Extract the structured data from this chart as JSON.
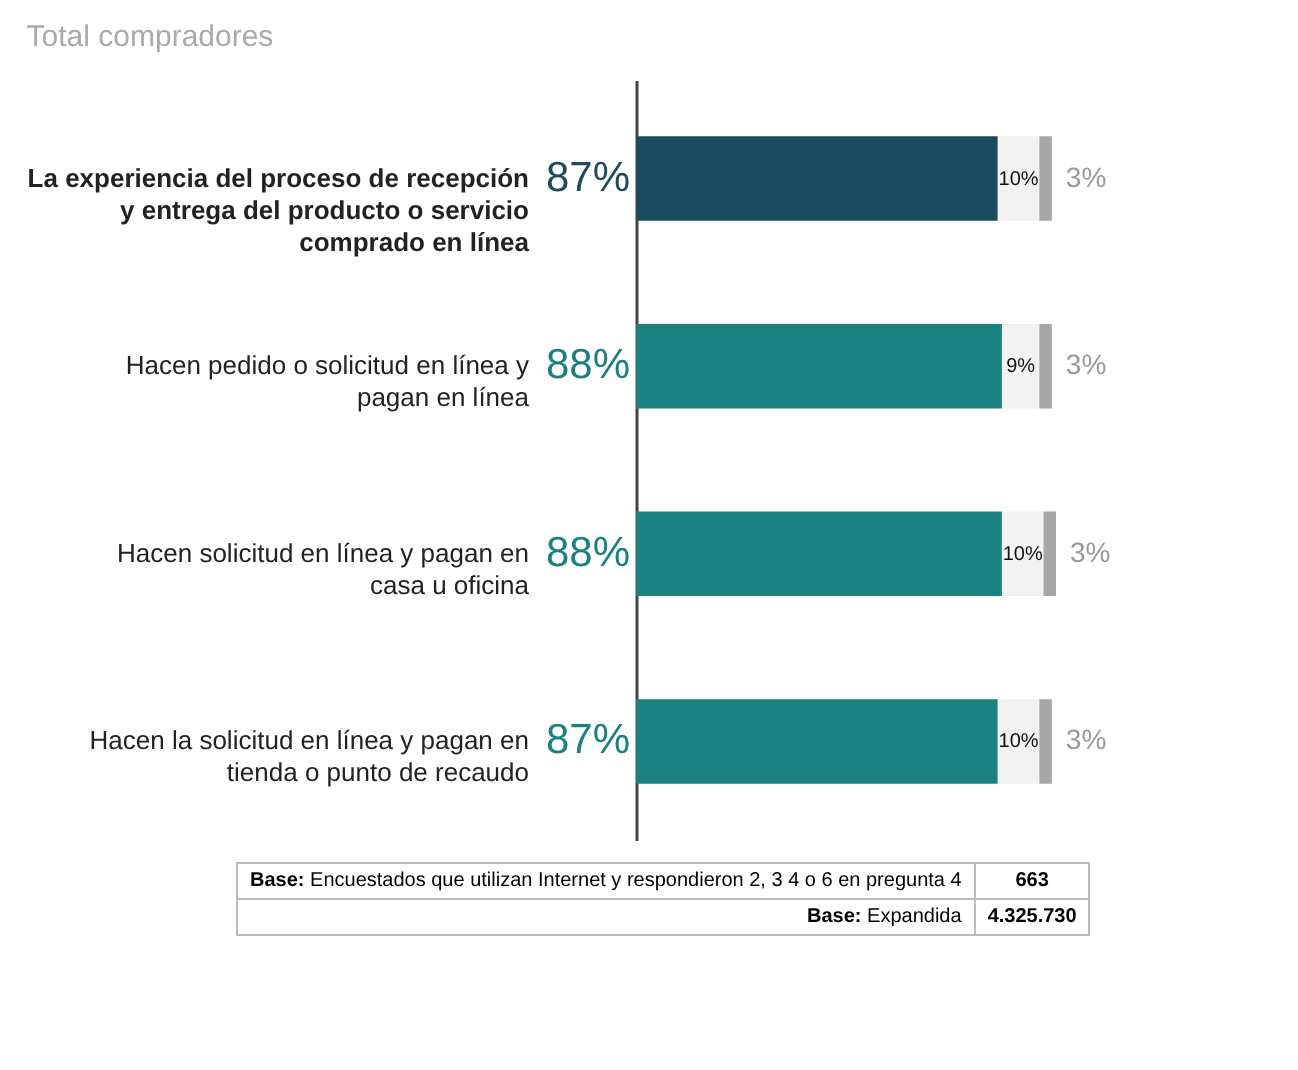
{
  "chart_data": {
    "type": "bar",
    "orientation": "horizontal",
    "stacked": true,
    "title": "Total compradores",
    "categories": [
      "La experiencia del proceso de recepción y entrega del producto o servicio comprado en línea",
      "Hacen pedido o solicitud en línea y pagan en línea",
      "Hacen solicitud en línea y pagan en casa u oficina",
      "Hacen la solicitud en línea y pagan en tienda o punto de recaudo"
    ],
    "series": [
      {
        "values": [
          87,
          88,
          88,
          87
        ],
        "colors": [
          "#1b4b5c",
          "#1a8080",
          "#1a8080",
          "#1a8080"
        ],
        "value_labels": [
          "87%",
          "88%",
          "88%",
          "87%"
        ]
      },
      {
        "values": [
          10,
          9,
          10,
          10
        ],
        "color": "#f2f2f2",
        "value_labels": [
          "10%",
          "9%",
          "10%",
          "10%"
        ]
      },
      {
        "values": [
          3,
          3,
          3,
          3
        ],
        "color": "#a6a6a6",
        "value_labels": [
          "3%",
          "3%",
          "3%",
          "3%"
        ]
      }
    ],
    "grid": false,
    "annotations": [
      "Base: Encuestados que utilizan Internet y respondieron 2, 3 4 o 6 en pregunta 4",
      "663",
      "Base: Expandida",
      "4.325.730"
    ]
  }
}
